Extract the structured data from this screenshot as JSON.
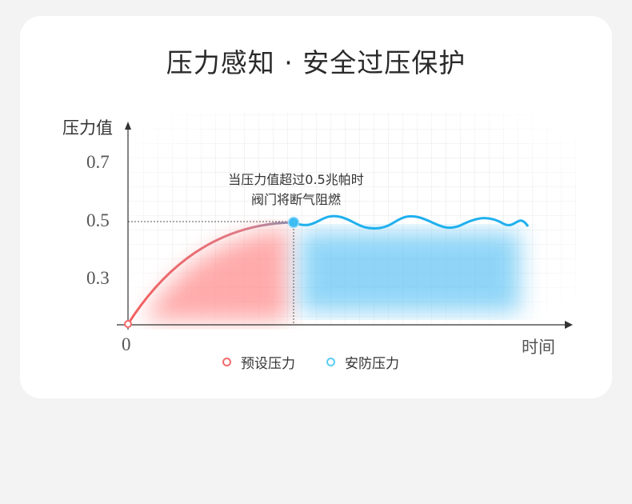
{
  "title": "压力感知 · 安全过压保护",
  "chart_data": {
    "type": "line",
    "ylabel": "压力值",
    "xlabel": "时间",
    "y_ticks": [
      "0.7",
      "0.5",
      "0.3"
    ],
    "origin_label": "0",
    "threshold": 0.5,
    "annotation": [
      "当压力值超过0.5兆帕时",
      "阀门将断气阻燃"
    ],
    "grid": true,
    "legend_placement": "bottom",
    "series": [
      {
        "name": "预设压力",
        "color": "#f26b6b",
        "description_values": {
          "start": 0,
          "end": 0.5
        }
      },
      {
        "name": "安防压力",
        "color": "#1fb0ee",
        "description_values": {
          "level": 0.5
        }
      }
    ]
  }
}
